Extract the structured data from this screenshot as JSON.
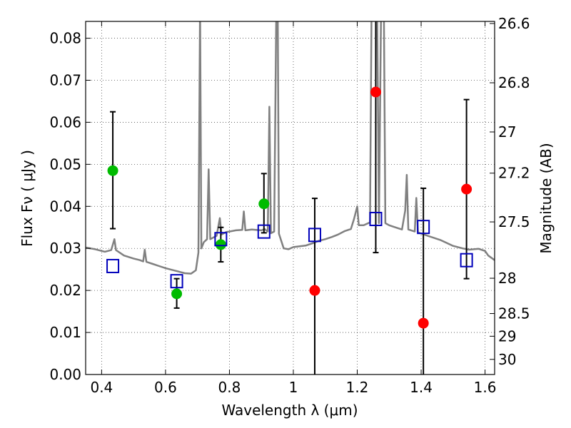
{
  "chart_data": {
    "type": "scatter",
    "xlabel": "Wavelength  λ (μm)",
    "ylabel_left": "Flux  Fν  ( μJy )",
    "ylabel_right": "Magnitude (AB)",
    "xlim": [
      0.35,
      1.63
    ],
    "ylim": [
      0.0,
      0.084
    ],
    "grid": true,
    "x_ticks": [
      0.4,
      0.6,
      0.8,
      1.0,
      1.2,
      1.4,
      1.6
    ],
    "x_tick_labels": [
      "0.4",
      "0.6",
      "0.8",
      "1",
      "1.2",
      "1.4",
      "1.6"
    ],
    "y_ticks": [
      0.0,
      0.01,
      0.02,
      0.03,
      0.04,
      0.05,
      0.06,
      0.07,
      0.08
    ],
    "y_tick_labels": [
      "0.00",
      "0.01",
      "0.02",
      "0.03",
      "0.04",
      "0.05",
      "0.06",
      "0.07",
      "0.08"
    ],
    "right_ticks": [
      {
        "label": "26.6",
        "flux": 0.0835
      },
      {
        "label": "26.8",
        "flux": 0.0694
      },
      {
        "label": "27",
        "flux": 0.0577
      },
      {
        "label": "27.2",
        "flux": 0.0479
      },
      {
        "label": "27.5",
        "flux": 0.0363
      },
      {
        "label": "28",
        "flux": 0.0229
      },
      {
        "label": "28.5",
        "flux": 0.0145
      },
      {
        "label": "29",
        "flux": 0.0091
      },
      {
        "label": "30",
        "flux": 0.0036
      }
    ],
    "series": [
      {
        "marker": "circle",
        "color": "#00bb00",
        "points": [
          {
            "x": 0.435,
            "y": 0.0485,
            "lo": 0.0347,
            "hi": 0.0625
          },
          {
            "x": 0.635,
            "y": 0.0192,
            "lo": 0.0158,
            "hi": 0.0228
          },
          {
            "x": 0.773,
            "y": 0.0309,
            "lo": 0.0268,
            "hi": 0.035
          },
          {
            "x": 0.908,
            "y": 0.0406,
            "lo": 0.0337,
            "hi": 0.0478
          }
        ]
      },
      {
        "marker": "circle",
        "color": "#ff0000",
        "points": [
          {
            "x": 1.067,
            "y": 0.02,
            "lo": 0.0,
            "hi": 0.0419
          },
          {
            "x": 1.258,
            "y": 0.0672,
            "lo": 0.029,
            "hi": 0.084
          },
          {
            "x": 1.407,
            "y": 0.0122,
            "lo": 0.0,
            "hi": 0.0443
          },
          {
            "x": 1.542,
            "y": 0.0441,
            "lo": 0.0228,
            "hi": 0.0654
          }
        ]
      },
      {
        "marker": "square",
        "color": "#0000bb",
        "points": [
          {
            "x": 0.435,
            "y": 0.0258
          },
          {
            "x": 0.635,
            "y": 0.0222
          },
          {
            "x": 0.773,
            "y": 0.0322
          },
          {
            "x": 0.908,
            "y": 0.034
          },
          {
            "x": 1.067,
            "y": 0.0332
          },
          {
            "x": 1.258,
            "y": 0.037
          },
          {
            "x": 1.407,
            "y": 0.0351
          },
          {
            "x": 1.542,
            "y": 0.0272
          }
        ]
      }
    ],
    "spectrum": {
      "color": "#808080",
      "points": [
        [
          0.35,
          0.0302
        ],
        [
          0.38,
          0.0298
        ],
        [
          0.41,
          0.0292
        ],
        [
          0.43,
          0.0296
        ],
        [
          0.44,
          0.0322
        ],
        [
          0.445,
          0.0296
        ],
        [
          0.47,
          0.0283
        ],
        [
          0.5,
          0.0276
        ],
        [
          0.52,
          0.0272
        ],
        [
          0.53,
          0.0269
        ],
        [
          0.535,
          0.0297
        ],
        [
          0.54,
          0.0268
        ],
        [
          0.56,
          0.0263
        ],
        [
          0.58,
          0.0258
        ],
        [
          0.6,
          0.0253
        ],
        [
          0.62,
          0.0249
        ],
        [
          0.64,
          0.0245
        ],
        [
          0.66,
          0.0241
        ],
        [
          0.68,
          0.024
        ],
        [
          0.695,
          0.0248
        ],
        [
          0.703,
          0.029
        ],
        [
          0.708,
          0.088
        ],
        [
          0.712,
          0.03
        ],
        [
          0.72,
          0.0315
        ],
        [
          0.73,
          0.0322
        ],
        [
          0.735,
          0.0488
        ],
        [
          0.74,
          0.0322
        ],
        [
          0.76,
          0.033
        ],
        [
          0.77,
          0.0372
        ],
        [
          0.775,
          0.0333
        ],
        [
          0.79,
          0.0339
        ],
        [
          0.8,
          0.034
        ],
        [
          0.82,
          0.0343
        ],
        [
          0.84,
          0.0344
        ],
        [
          0.845,
          0.0388
        ],
        [
          0.85,
          0.0343
        ],
        [
          0.87,
          0.0345
        ],
        [
          0.9,
          0.0343
        ],
        [
          0.91,
          0.0346
        ],
        [
          0.92,
          0.034
        ],
        [
          0.925,
          0.0637
        ],
        [
          0.93,
          0.0336
        ],
        [
          0.94,
          0.034
        ],
        [
          0.947,
          0.09
        ],
        [
          0.951,
          0.09
        ],
        [
          0.955,
          0.0335
        ],
        [
          0.97,
          0.03
        ],
        [
          0.985,
          0.0298
        ],
        [
          1.0,
          0.0303
        ],
        [
          1.02,
          0.0305
        ],
        [
          1.04,
          0.0307
        ],
        [
          1.06,
          0.0312
        ],
        [
          1.08,
          0.0318
        ],
        [
          1.1,
          0.0322
        ],
        [
          1.12,
          0.0327
        ],
        [
          1.14,
          0.0333
        ],
        [
          1.16,
          0.0341
        ],
        [
          1.18,
          0.0346
        ],
        [
          1.19,
          0.037
        ],
        [
          1.2,
          0.04
        ],
        [
          1.205,
          0.0355
        ],
        [
          1.22,
          0.0355
        ],
        [
          1.24,
          0.0362
        ],
        [
          1.245,
          0.09
        ],
        [
          1.262,
          0.09
        ],
        [
          1.268,
          0.036
        ],
        [
          1.275,
          0.09
        ],
        [
          1.283,
          0.09
        ],
        [
          1.288,
          0.036
        ],
        [
          1.3,
          0.0355
        ],
        [
          1.32,
          0.035
        ],
        [
          1.34,
          0.0345
        ],
        [
          1.35,
          0.039
        ],
        [
          1.355,
          0.0475
        ],
        [
          1.36,
          0.0345
        ],
        [
          1.38,
          0.034
        ],
        [
          1.385,
          0.042
        ],
        [
          1.39,
          0.0338
        ],
        [
          1.42,
          0.033
        ],
        [
          1.46,
          0.032
        ],
        [
          1.5,
          0.0306
        ],
        [
          1.53,
          0.03
        ],
        [
          1.55,
          0.0297
        ],
        [
          1.58,
          0.0299
        ],
        [
          1.6,
          0.0294
        ],
        [
          1.61,
          0.0283
        ],
        [
          1.63,
          0.0272
        ]
      ]
    }
  }
}
